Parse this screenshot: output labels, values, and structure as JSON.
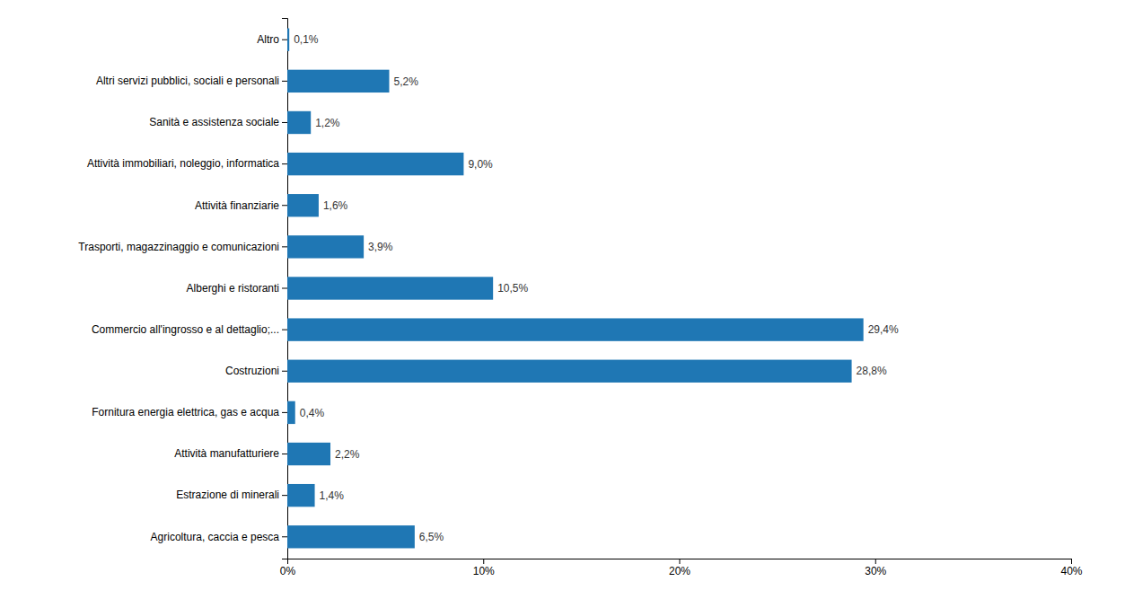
{
  "chart_data": {
    "type": "bar",
    "orientation": "horizontal",
    "categories": [
      "Altro",
      "Altri servizi pubblici, sociali e personali",
      "Sanità e assistenza sociale",
      "Attività immobiliari, noleggio, informatica",
      "Attività finanziarie",
      "Trasporti, magazzinaggio e comunicazioni",
      "Alberghi e ristoranti",
      "Commercio all'ingrosso e al dettaglio;...",
      "Costruzioni",
      "Fornitura energia elettrica, gas e acqua",
      "Attività manufatturiere",
      "Estrazione di minerali",
      "Agricoltura, caccia e pesca"
    ],
    "values": [
      0.1,
      5.2,
      1.2,
      9.0,
      1.6,
      3.9,
      10.5,
      29.4,
      28.8,
      0.4,
      2.2,
      1.4,
      6.5
    ],
    "value_labels": [
      "0,1%",
      "5,2%",
      "1,2%",
      "9,0%",
      "1,6%",
      "3,9%",
      "10,5%",
      "29,4%",
      "28,8%",
      "0,4%",
      "2,2%",
      "1,4%",
      "6,5%"
    ],
    "data_labels": true,
    "xlim": [
      0,
      40
    ],
    "xticks": [
      {
        "value": 0,
        "label": "0%"
      },
      {
        "value": 10,
        "label": "10%"
      },
      {
        "value": 20,
        "label": "20%"
      },
      {
        "value": 30,
        "label": "30%"
      },
      {
        "value": 40,
        "label": "40%"
      }
    ],
    "grid": false
  }
}
